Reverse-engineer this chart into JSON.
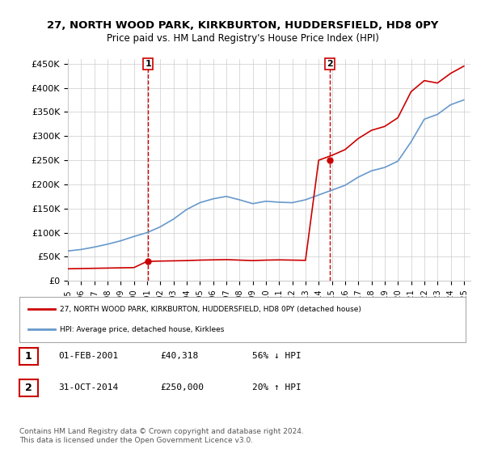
{
  "title": "27, NORTH WOOD PARK, KIRKBURTON, HUDDERSFIELD, HD8 0PY",
  "subtitle": "Price paid vs. HM Land Registry's House Price Index (HPI)",
  "ylim": [
    0,
    460000
  ],
  "yticks": [
    0,
    50000,
    100000,
    150000,
    200000,
    250000,
    300000,
    350000,
    400000,
    450000
  ],
  "ytick_labels": [
    "£0",
    "£50K",
    "£100K",
    "£150K",
    "£200K",
    "£250K",
    "£300K",
    "£350K",
    "£400K",
    "£450K"
  ],
  "sale1_date": "2001-02-01",
  "sale1_price": 40318,
  "sale1_label": "1",
  "sale2_date": "2014-10-31",
  "sale2_price": 250000,
  "sale2_label": "2",
  "line_color_red": "#cc0000",
  "line_color_blue": "#6699cc",
  "annotation_box_color": "#cc0000",
  "grid_color": "#cccccc",
  "background_color": "#ffffff",
  "legend_entry1": "27, NORTH WOOD PARK, KIRKBURTON, HUDDERSFIELD, HD8 0PY (detached house)",
  "legend_entry2": "HPI: Average price, detached house, Kirklees",
  "table_row1": [
    "1",
    "01-FEB-2001",
    "£40,318",
    "56% ↓ HPI"
  ],
  "table_row2": [
    "2",
    "31-OCT-2014",
    "£250,000",
    "20% ↑ HPI"
  ],
  "footnote": "Contains HM Land Registry data © Crown copyright and database right 2024.\nThis data is licensed under the Open Government Licence v3.0.",
  "hpi_years": [
    1995,
    1996,
    1997,
    1998,
    1999,
    2000,
    2001,
    2002,
    2003,
    2004,
    2005,
    2006,
    2007,
    2008,
    2009,
    2010,
    2011,
    2012,
    2013,
    2014,
    2015,
    2016,
    2017,
    2018,
    2019,
    2020,
    2021,
    2022,
    2023,
    2024,
    2025
  ],
  "hpi_values": [
    62000,
    65000,
    70000,
    76000,
    83000,
    92000,
    100000,
    112000,
    128000,
    148000,
    162000,
    170000,
    175000,
    168000,
    160000,
    165000,
    163000,
    162000,
    168000,
    178000,
    188000,
    198000,
    215000,
    228000,
    235000,
    248000,
    288000,
    335000,
    345000,
    365000,
    375000
  ],
  "prop_years": [
    1995,
    1996,
    1997,
    1998,
    1999,
    2000,
    2001,
    2002,
    2003,
    2004,
    2005,
    2006,
    2007,
    2008,
    2009,
    2010,
    2011,
    2012,
    2013,
    2014,
    2015,
    2016,
    2017,
    2018,
    2019,
    2020,
    2021,
    2022,
    2023,
    2024,
    2025
  ],
  "prop_values": [
    25000,
    25500,
    26000,
    26500,
    27000,
    27500,
    40318,
    41000,
    41500,
    42000,
    43000,
    43500,
    44000,
    43000,
    42000,
    43000,
    43500,
    43000,
    42500,
    250000,
    260000,
    272000,
    295000,
    312000,
    320000,
    338000,
    392000,
    415000,
    410000,
    430000,
    445000
  ]
}
